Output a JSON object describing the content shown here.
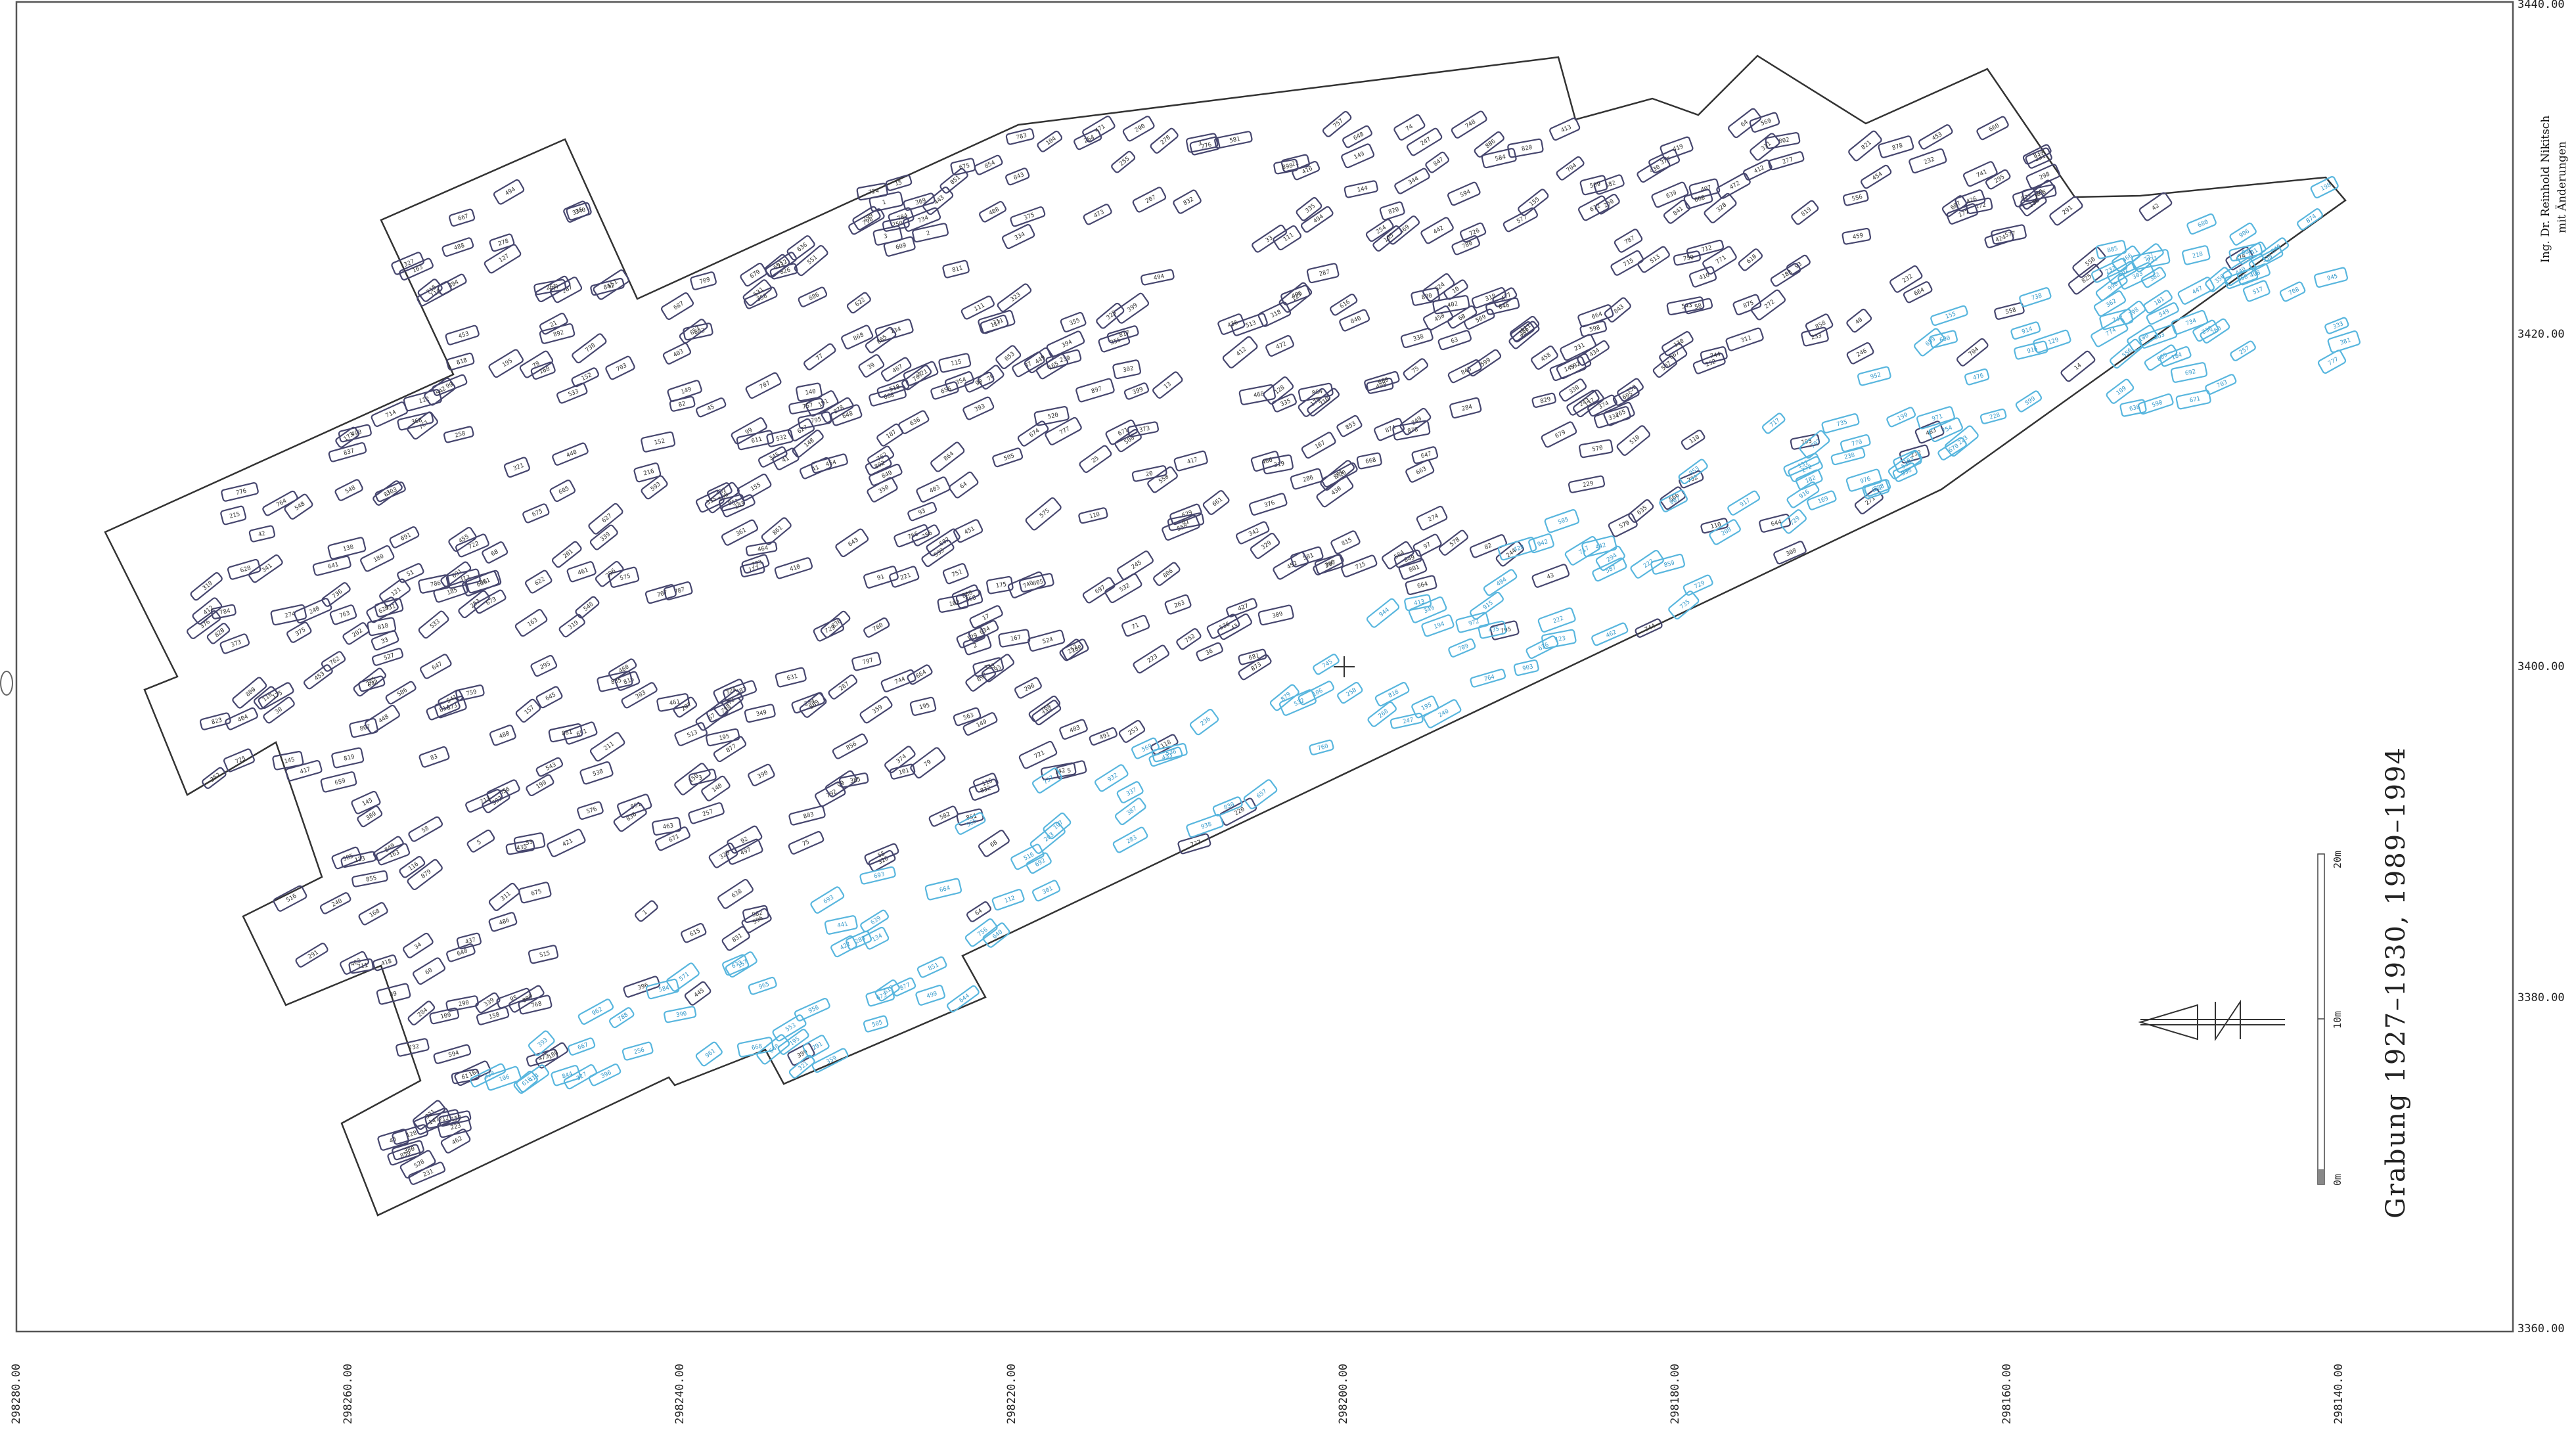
{
  "map": {
    "title": "Grabung 1927–1930, 1989–1994",
    "credit_line1": "Ing. Dr. Reinhold Nikitsch",
    "credit_line2": "mit Änderungen",
    "north_label": "N",
    "x_ticks": [
      "298280.00",
      "298260.00",
      "298240.00",
      "298220.00",
      "298200.00",
      "298180.00",
      "298160.00",
      "298140.00"
    ],
    "y_ticks": [
      "3440.00",
      "3420.00",
      "3400.00",
      "3380.00",
      "3360.00"
    ],
    "scale_labels": [
      "0m",
      "10m",
      "20m"
    ],
    "colors": {
      "frame": "#555555",
      "boundary": "#333333",
      "graves_1927_1930": "#46466e",
      "graves_1989_1994": "#58b6de"
    }
  }
}
